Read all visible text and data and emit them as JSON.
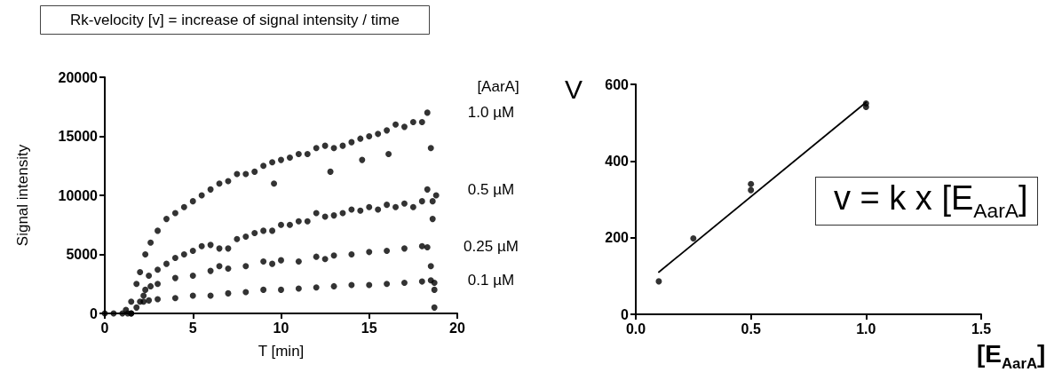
{
  "chart_data": [
    {
      "type": "scatter",
      "title": "Rk-velocity [v] = increase of signal intensity / time",
      "xlabel": "T [min]",
      "ylabel": "Signal intensity",
      "legend_title": "[AarA]",
      "marker": "circle",
      "xlim": [
        0,
        20
      ],
      "xticks": [
        0,
        5,
        10,
        15,
        20
      ],
      "ylim": [
        0,
        20000
      ],
      "yticks": [
        0,
        5000,
        10000,
        15000,
        20000
      ],
      "series": [
        {
          "name": "1.0 µM",
          "color": "#000000",
          "x": [
            0,
            0.5,
            1.0,
            1.2,
            1.5,
            1.8,
            2.0,
            2.3,
            2.6,
            3,
            3.5,
            4,
            4.5,
            5,
            5.5,
            6,
            6.5,
            7,
            7.5,
            8,
            8.5,
            9,
            9.5,
            9.6,
            10,
            10.5,
            11,
            11.5,
            12,
            12.5,
            12.8,
            13,
            13.5,
            14,
            14.5,
            14.6,
            15,
            15.5,
            16,
            16.1,
            16.5,
            17,
            17.5,
            18,
            18.3,
            18.5,
            18.6,
            18.7
          ],
          "values": [
            0,
            0,
            0,
            300,
            1000,
            2500,
            3500,
            5000,
            6000,
            7000,
            8000,
            8500,
            9000,
            9500,
            10000,
            10500,
            11000,
            11200,
            11800,
            11800,
            12000,
            12500,
            12800,
            11000,
            13000,
            13200,
            13500,
            13500,
            14000,
            14200,
            12000,
            14000,
            14200,
            14500,
            14800,
            13000,
            15000,
            15200,
            15500,
            13500,
            16000,
            15800,
            16200,
            16200,
            17000,
            14000,
            8000,
            2000
          ]
        },
        {
          "name": "0.5 µM",
          "color": "#000000",
          "x": [
            1.3,
            1.8,
            2.2,
            2.5,
            3,
            3.5,
            4,
            4.5,
            5,
            5.5,
            6,
            6.5,
            7,
            7.5,
            8,
            8.5,
            9,
            9.5,
            10,
            10.5,
            11,
            11.5,
            12,
            12.5,
            13,
            13.5,
            14,
            14.5,
            15,
            15.5,
            16,
            16.5,
            17,
            17.5,
            18,
            18.3,
            18.6,
            18.8
          ],
          "values": [
            0,
            500,
            1500,
            3200,
            3700,
            4200,
            4700,
            5000,
            5300,
            5700,
            5800,
            5500,
            5500,
            6300,
            6500,
            6800,
            7000,
            7000,
            7500,
            7500,
            7800,
            7800,
            8500,
            8200,
            8300,
            8500,
            8800,
            8700,
            9000,
            8800,
            9200,
            9000,
            9300,
            9000,
            9500,
            10500,
            9500,
            10000
          ]
        },
        {
          "name": "0.25 µM",
          "color": "#000000",
          "x": [
            1.5,
            2,
            2.3,
            2.6,
            3,
            4,
            5,
            6,
            6.5,
            7,
            8,
            9,
            9.5,
            10,
            11,
            12,
            12.5,
            13,
            14,
            15,
            16,
            17,
            18,
            18.3,
            18.5,
            18.7
          ],
          "values": [
            0,
            1000,
            2000,
            2300,
            2500,
            3000,
            3200,
            3600,
            4000,
            3800,
            4000,
            4400,
            4200,
            4500,
            4400,
            4800,
            4600,
            4900,
            5000,
            5200,
            5300,
            5500,
            5700,
            5600,
            4000,
            500
          ]
        },
        {
          "name": "0.1 µM",
          "color": "#000000",
          "x": [
            1.5,
            2.2,
            2.5,
            3,
            4,
            5,
            6,
            7,
            8,
            9,
            10,
            11,
            12,
            13,
            14,
            15,
            16,
            17,
            18,
            18.5,
            18.7
          ],
          "values": [
            0,
            1000,
            1100,
            1200,
            1300,
            1500,
            1500,
            1700,
            1800,
            2000,
            2000,
            2100,
            2200,
            2300,
            2400,
            2400,
            2500,
            2600,
            2700,
            2800,
            2600
          ]
        }
      ]
    },
    {
      "type": "scatter",
      "xlabel": "[E$_{AarA}$]",
      "ylabel": "V",
      "marker": "circle",
      "annotations": [
        "v = k x [E$_{AarA}$]"
      ],
      "xlim": [
        0,
        1.5
      ],
      "xticks": [
        {
          "value": 0,
          "label": "0.0"
        },
        {
          "value": 0.5,
          "label": "0.5"
        },
        {
          "value": 1,
          "label": "1.0"
        },
        {
          "value": 1.5,
          "label": "1.5"
        }
      ],
      "ylim": [
        0,
        600
      ],
      "yticks": [
        0,
        200,
        400,
        600
      ],
      "series": [
        {
          "color": "#000000",
          "x": [
            0.1,
            0.25,
            0.5,
            0.5,
            1.0,
            1.0
          ],
          "values": [
            86,
            198,
            324,
            340,
            541,
            550
          ]
        },
        {
          "type": "line",
          "marker": "none",
          "color": "#000000",
          "x": [
            0.1,
            1.0
          ],
          "values": [
            110,
            553
          ]
        }
      ]
    }
  ]
}
